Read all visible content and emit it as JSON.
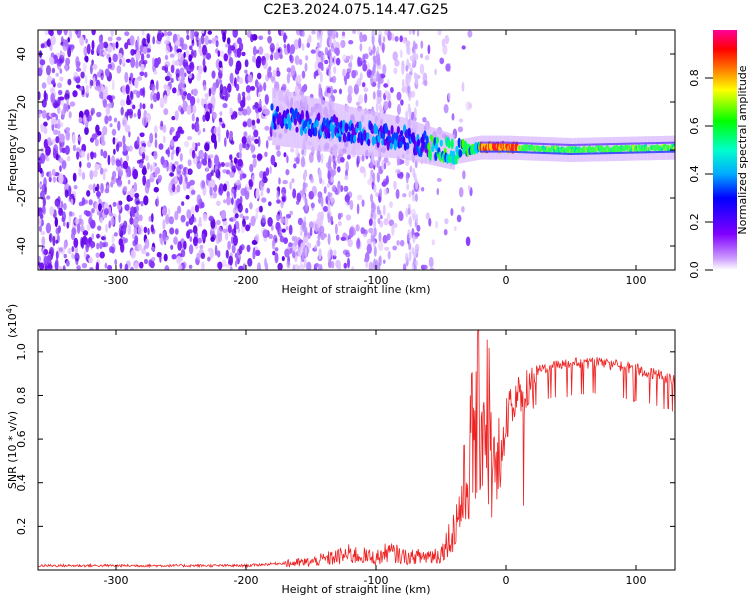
{
  "title": "C2E3.2024.075.14.47.G25",
  "chart_data": [
    {
      "type": "heatmap",
      "title": "C2E3.2024.075.14.47.G25",
      "xlabel": "Height of straight line (km)",
      "ylabel": "Frequency (Hz)",
      "xlim": [
        -360,
        130
      ],
      "ylim": [
        -50,
        50
      ],
      "x_ticks": [
        -300,
        -200,
        -100,
        0,
        100
      ],
      "y_ticks": [
        -40,
        -20,
        0,
        20,
        40
      ],
      "colorbar": {
        "label": "Normalized spectral amplitude",
        "range": [
          0,
          1
        ],
        "ticks": [
          "0.0",
          "0.2",
          "0.4",
          "0.6",
          "0.8"
        ],
        "colors": [
          "#ffffff",
          "#9933ff",
          "#0000ff",
          "#00ffff",
          "#00ff00",
          "#ffff00",
          "#ff8800",
          "#ff0000",
          "#ff00aa"
        ]
      },
      "features": {
        "noise_region_x": [
          -360,
          -60
        ],
        "signal_band_center_hz": [
          [
            -180,
            14
          ],
          [
            -120,
            8
          ],
          [
            -80,
            5
          ],
          [
            -40,
            -1
          ],
          [
            -20,
            1
          ],
          [
            0,
            1
          ],
          [
            50,
            0
          ],
          [
            130,
            1
          ]
        ],
        "signal_start_x": -180,
        "strong_peak_x": [
          -20,
          10
        ]
      },
      "grid": false,
      "legend": "none"
    },
    {
      "type": "line",
      "xlabel": "Height of straight line (km)",
      "ylabel": "SNR (10 * v/v)",
      "yunit": "(x10",
      "yunit_exp": "4",
      "yunit_close": ")",
      "xlim": [
        -360,
        130
      ],
      "ylim": [
        0,
        1.1
      ],
      "x_ticks": [
        -300,
        -200,
        -100,
        0,
        100
      ],
      "y_ticks": [
        0.2,
        0.4,
        0.6,
        0.8,
        1.0
      ],
      "series": [
        {
          "color": "#ee2222",
          "envelope": [
            [
              -360,
              0.02
            ],
            [
              -200,
              0.02
            ],
            [
              -150,
              0.04
            ],
            [
              -120,
              0.08
            ],
            [
              -100,
              0.06
            ],
            [
              -90,
              0.09
            ],
            [
              -75,
              0.06
            ],
            [
              -50,
              0.08
            ],
            [
              -40,
              0.2
            ],
            [
              -30,
              0.45
            ],
            [
              -25,
              0.7
            ],
            [
              -15,
              0.85
            ],
            [
              -8,
              0.4
            ],
            [
              0,
              0.8
            ],
            [
              10,
              0.9
            ],
            [
              25,
              0.95
            ],
            [
              40,
              0.97
            ],
            [
              70,
              0.98
            ],
            [
              100,
              0.95
            ],
            [
              130,
              0.9
            ]
          ]
        }
      ],
      "grid": false,
      "legend": "none"
    }
  ]
}
